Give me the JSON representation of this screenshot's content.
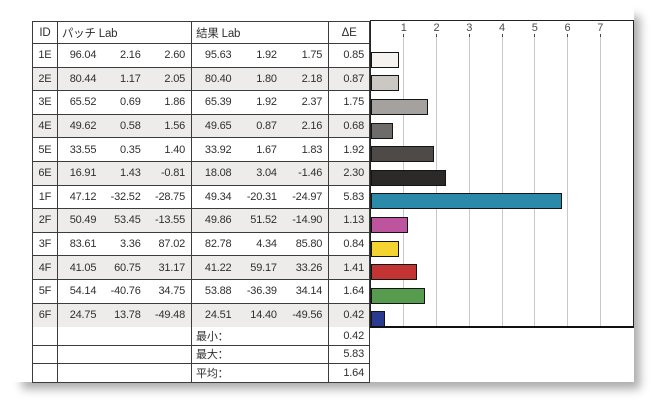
{
  "table": {
    "headers": {
      "id": "ID",
      "patch": "パッチ Lab",
      "result": "結果 Lab",
      "delta": "ΔE"
    },
    "rows": [
      {
        "id": "1E",
        "patch": [
          "96.04",
          "2.16",
          "2.60"
        ],
        "result": [
          "95.63",
          "1.92",
          "1.75"
        ],
        "delta": "0.85"
      },
      {
        "id": "2E",
        "patch": [
          "80.44",
          "1.17",
          "2.05"
        ],
        "result": [
          "80.40",
          "1.80",
          "2.18"
        ],
        "delta": "0.87"
      },
      {
        "id": "3E",
        "patch": [
          "65.52",
          "0.69",
          "1.86"
        ],
        "result": [
          "65.39",
          "1.92",
          "2.37"
        ],
        "delta": "1.75"
      },
      {
        "id": "4E",
        "patch": [
          "49.62",
          "0.58",
          "1.56"
        ],
        "result": [
          "49.65",
          "0.87",
          "2.16"
        ],
        "delta": "0.68"
      },
      {
        "id": "5E",
        "patch": [
          "33.55",
          "0.35",
          "1.40"
        ],
        "result": [
          "33.92",
          "1.67",
          "1.83"
        ],
        "delta": "1.92"
      },
      {
        "id": "6E",
        "patch": [
          "16.91",
          "1.43",
          "-0.81"
        ],
        "result": [
          "18.08",
          "3.04",
          "-1.46"
        ],
        "delta": "2.30"
      },
      {
        "id": "1F",
        "patch": [
          "47.12",
          "-32.52",
          "-28.75"
        ],
        "result": [
          "49.34",
          "-20.31",
          "-24.97"
        ],
        "delta": "5.83"
      },
      {
        "id": "2F",
        "patch": [
          "50.49",
          "53.45",
          "-13.55"
        ],
        "result": [
          "49.86",
          "51.52",
          "-14.90"
        ],
        "delta": "1.13"
      },
      {
        "id": "3F",
        "patch": [
          "83.61",
          "3.36",
          "87.02"
        ],
        "result": [
          "82.78",
          "4.34",
          "85.80"
        ],
        "delta": "0.84"
      },
      {
        "id": "4F",
        "patch": [
          "41.05",
          "60.75",
          "31.17"
        ],
        "result": [
          "41.22",
          "59.17",
          "33.26"
        ],
        "delta": "1.41"
      },
      {
        "id": "5F",
        "patch": [
          "54.14",
          "-40.76",
          "34.75"
        ],
        "result": [
          "53.88",
          "-36.39",
          "34.14"
        ],
        "delta": "1.64"
      },
      {
        "id": "6F",
        "patch": [
          "24.75",
          "13.78",
          "-49.48"
        ],
        "result": [
          "24.51",
          "14.40",
          "-49.56"
        ],
        "delta": "0.42"
      }
    ],
    "summary": [
      {
        "label": "最小：",
        "value": "0.42"
      },
      {
        "label": "最大：",
        "value": "5.83"
      },
      {
        "label": "平均：",
        "value": "1.64"
      }
    ]
  },
  "chart": {
    "ticks": [
      "1",
      "2",
      "3",
      "4",
      "5",
      "6",
      "7"
    ],
    "axis_max": 8,
    "grid_color": "#c9c9c9"
  },
  "chart_data": {
    "type": "bar",
    "orientation": "horizontal",
    "title": "ΔE per patch",
    "xlabel": "ΔE",
    "xlim": [
      0,
      8
    ],
    "grid": true,
    "categories": [
      "1E",
      "2E",
      "3E",
      "4E",
      "5E",
      "6E",
      "1F",
      "2F",
      "3F",
      "4F",
      "5F",
      "6F"
    ],
    "values": [
      0.85,
      0.87,
      1.75,
      0.68,
      1.92,
      2.3,
      5.83,
      1.13,
      0.84,
      1.41,
      1.64,
      0.42
    ],
    "colors": [
      "#f5f2ef",
      "#cbc8c4",
      "#a4a19e",
      "#6e6c6a",
      "#4d4a48",
      "#2c2a28",
      "#2b8aaa",
      "#bf549e",
      "#f5d430",
      "#c23433",
      "#579b4e",
      "#2a3a90"
    ],
    "summary": {
      "min": 0.42,
      "max": 5.83,
      "avg": 1.64
    }
  }
}
